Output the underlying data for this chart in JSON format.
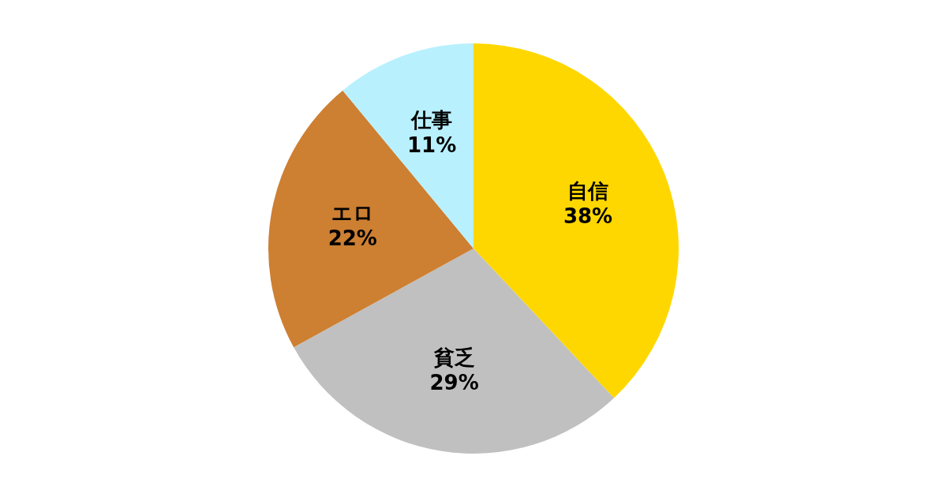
{
  "chart_data": {
    "type": "pie",
    "categories": [
      "自信",
      "貧乏",
      "エロ",
      "仕事"
    ],
    "values": [
      38,
      29,
      22,
      11
    ],
    "colors": [
      "#ffd700",
      "#c0c0c0",
      "#cd7f32",
      "#b8f0fe"
    ],
    "value_labels": [
      "38%",
      "29%",
      "22%",
      "11%"
    ]
  }
}
